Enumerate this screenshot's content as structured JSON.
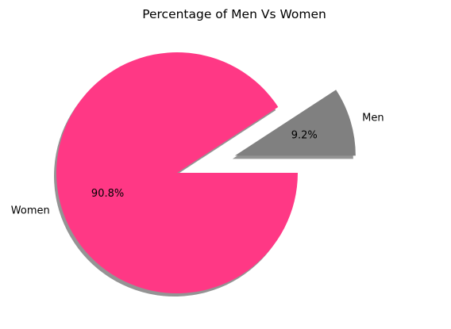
{
  "chart_data": {
    "type": "pie",
    "title": "Percentage of Men Vs Women",
    "slices": [
      {
        "name": "Men",
        "value": 9.2,
        "pct_label": "9.2%",
        "color": "#808080",
        "exploded": true
      },
      {
        "name": "Women",
        "value": 90.8,
        "pct_label": "90.8%",
        "color": "#ff3885",
        "exploded": false
      }
    ],
    "shadow": true,
    "start_angle_deg": 0,
    "direction": "counterclockwise"
  }
}
